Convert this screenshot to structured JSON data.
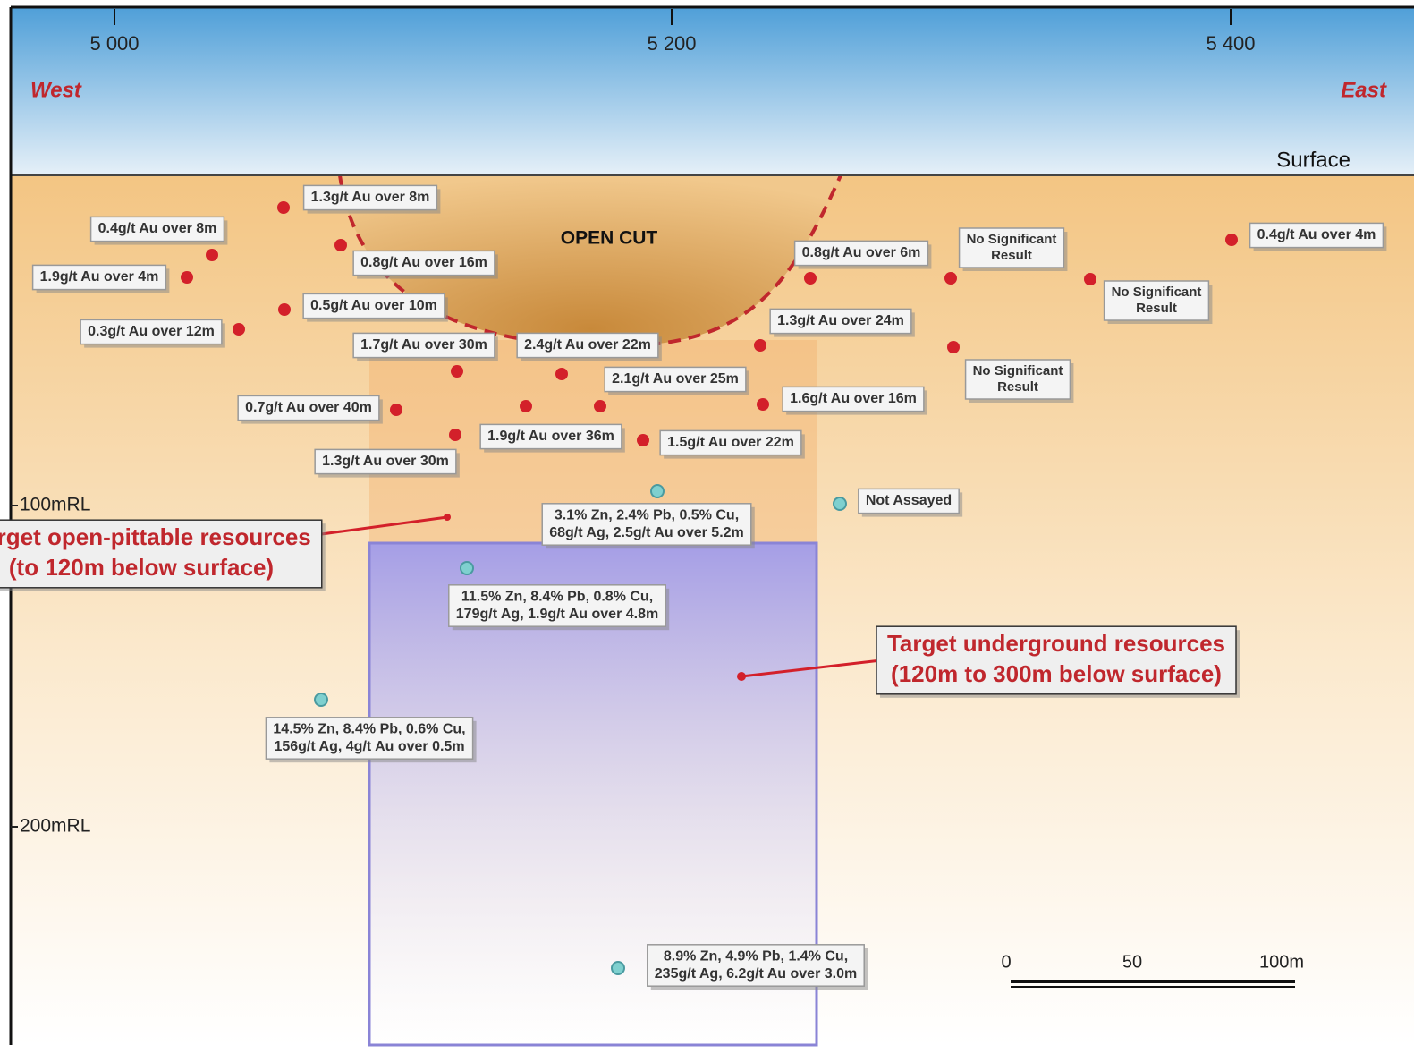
{
  "axis": {
    "eastings": [
      "5 000",
      "5 200",
      "5 400"
    ],
    "levels": [
      "100mRL",
      "200mRL"
    ],
    "west": "West",
    "east": "East",
    "surface": "Surface"
  },
  "open_cut": "OPEN CUT",
  "gold_intercepts": [
    "1.3g/t Au over 8m",
    "0.4g/t Au over 8m",
    "0.8g/t Au over 16m",
    "1.9g/t Au over 4m",
    "0.5g/t Au over 10m",
    "0.3g/t Au over 12m",
    "1.7g/t Au over 30m",
    "2.4g/t Au over 22m",
    "2.1g/t Au over 25m",
    "0.7g/t Au over 40m",
    "1.9g/t Au over 36m",
    "1.5g/t Au over 22m",
    "1.3g/t Au over 30m",
    "0.8g/t Au over 6m",
    "1.3g/t Au over 24m",
    "1.6g/t Au over 16m",
    "0.4g/t Au over 4m"
  ],
  "no_result": [
    [
      "No Significant",
      "Result"
    ],
    [
      "No Significant",
      "Result"
    ],
    [
      "No Significant",
      "Result"
    ]
  ],
  "not_assayed": "Not Assayed",
  "base_metal_intercepts": [
    [
      "3.1% Zn, 2.4% Pb, 0.5% Cu,",
      "68g/t Ag, 2.5g/t Au over 5.2m"
    ],
    [
      "11.5% Zn, 8.4% Pb, 0.8% Cu,",
      "179g/t Ag, 1.9g/t Au over 4.8m"
    ],
    [
      "14.5% Zn, 8.4% Pb, 0.6% Cu,",
      "156g/t Ag, 4g/t Au over 0.5m"
    ],
    [
      "8.9% Zn, 4.9% Pb, 1.4% Cu,",
      "235g/t Ag, 6.2g/t Au over 3.0m"
    ]
  ],
  "targets": [
    [
      "Target open-pittable resources",
      "(to 120m below surface)"
    ],
    [
      "Target underground resources",
      "(120m to 300m below surface)"
    ]
  ],
  "scale_bar": [
    "0",
    "50",
    "100m"
  ]
}
